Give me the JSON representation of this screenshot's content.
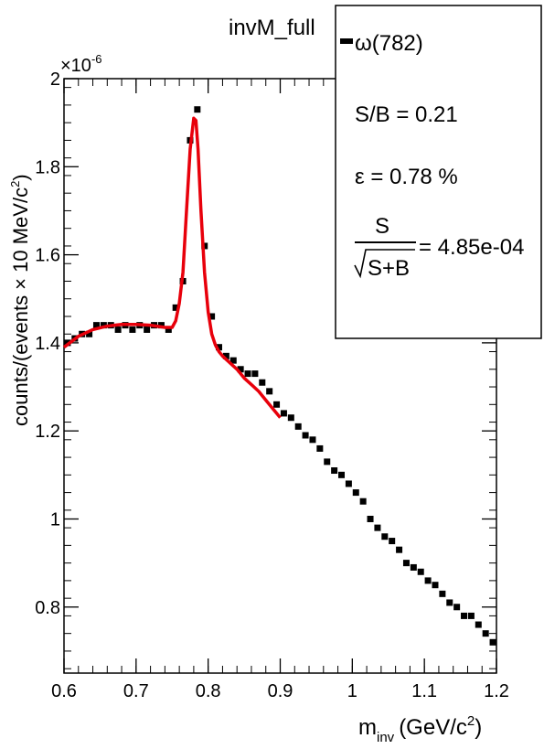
{
  "chart_data": {
    "type": "scatter",
    "title": "invM_full",
    "xlabel": {
      "main": "m",
      "sub": "inv",
      "unit": "(GeV/c",
      "unit_sup": "2",
      "unit_close": ")"
    },
    "ylabel": "counts/(events × 10 MeV/c",
    "ylabel_sup": "2",
    "ylabel_close": ")",
    "y_exponent": "×10",
    "y_exponent_sup": "-6",
    "xlim": [
      0.6,
      1.2
    ],
    "ylim": [
      0.65,
      2.0
    ],
    "x_ticks": [
      0.6,
      0.7,
      0.8,
      0.9,
      1,
      1.1,
      1.2
    ],
    "x_tick_labels": [
      "0.6",
      "0.7",
      "0.8",
      "0.9",
      "1",
      "1.1",
      "1.2"
    ],
    "y_ticks": [
      0.8,
      1.0,
      1.2,
      1.4,
      1.6,
      1.8,
      2.0
    ],
    "y_tick_labels": [
      "0.8",
      "1",
      "1.2",
      "1.4",
      "1.6",
      "1.8",
      "2"
    ],
    "marker_color": "#000000",
    "fit_color": "#e8000b",
    "series": [
      {
        "name": "ω(782)",
        "x": [
          0.605,
          0.615,
          0.625,
          0.635,
          0.645,
          0.655,
          0.665,
          0.675,
          0.685,
          0.695,
          0.705,
          0.715,
          0.725,
          0.735,
          0.745,
          0.755,
          0.765,
          0.775,
          0.785,
          0.795,
          0.805,
          0.815,
          0.825,
          0.835,
          0.845,
          0.855,
          0.865,
          0.875,
          0.885,
          0.895,
          0.905,
          0.915,
          0.925,
          0.935,
          0.945,
          0.955,
          0.965,
          0.975,
          0.985,
          0.995,
          1.005,
          1.015,
          1.025,
          1.035,
          1.045,
          1.055,
          1.065,
          1.075,
          1.085,
          1.095,
          1.105,
          1.115,
          1.125,
          1.135,
          1.145,
          1.155,
          1.165,
          1.175,
          1.185,
          1.195
        ],
        "y": [
          1.4,
          1.41,
          1.42,
          1.42,
          1.44,
          1.44,
          1.44,
          1.43,
          1.44,
          1.43,
          1.44,
          1.43,
          1.44,
          1.44,
          1.43,
          1.48,
          1.54,
          1.86,
          1.93,
          1.62,
          1.46,
          1.39,
          1.37,
          1.36,
          1.34,
          1.33,
          1.33,
          1.31,
          1.29,
          1.26,
          1.24,
          1.23,
          1.21,
          1.19,
          1.18,
          1.16,
          1.13,
          1.11,
          1.1,
          1.08,
          1.06,
          1.04,
          1.0,
          0.98,
          0.96,
          0.95,
          0.93,
          0.9,
          0.89,
          0.88,
          0.86,
          0.85,
          0.83,
          0.81,
          0.8,
          0.78,
          0.78,
          0.76,
          0.74,
          0.72
        ]
      }
    ],
    "fit": {
      "x": [
        0.6,
        0.62,
        0.64,
        0.66,
        0.68,
        0.7,
        0.72,
        0.74,
        0.75,
        0.755,
        0.76,
        0.765,
        0.77,
        0.775,
        0.78,
        0.783,
        0.786,
        0.79,
        0.795,
        0.8,
        0.805,
        0.81,
        0.815,
        0.82,
        0.83,
        0.84,
        0.85,
        0.86,
        0.87,
        0.88,
        0.89,
        0.9
      ],
      "y": [
        1.39,
        1.415,
        1.43,
        1.438,
        1.442,
        1.442,
        1.44,
        1.435,
        1.435,
        1.45,
        1.49,
        1.56,
        1.7,
        1.84,
        1.91,
        1.905,
        1.84,
        1.7,
        1.56,
        1.47,
        1.42,
        1.395,
        1.38,
        1.37,
        1.355,
        1.34,
        1.32,
        1.305,
        1.29,
        1.27,
        1.25,
        1.23
      ]
    }
  },
  "legend": {
    "entry_label": "ω(782)",
    "sb_text": "S/B = 0.21",
    "eff_text": "ε = 0.78 %",
    "frac_num": "S",
    "frac_den": "S+B",
    "signif_text": "= 4.85e-04"
  }
}
